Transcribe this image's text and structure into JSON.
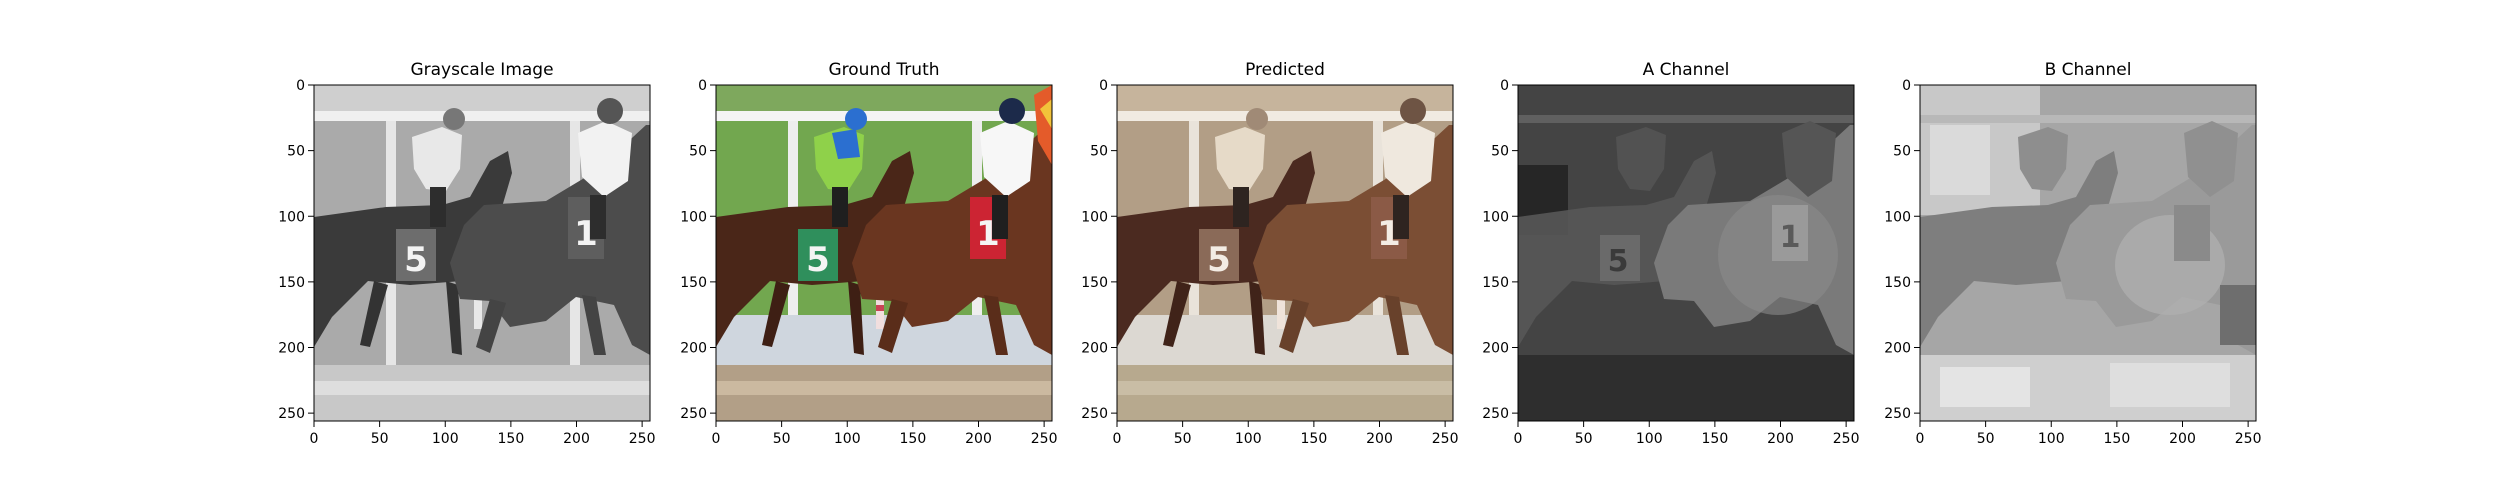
{
  "figure": {
    "panels": [
      {
        "id": "grayscale",
        "title": "Grayscale Image",
        "image": "grayscale photo of two jockeys racing horses numbered 5 and 1 past a white rail",
        "x_ticks": [
          "0",
          "50",
          "100",
          "150",
          "200",
          "250"
        ],
        "y_ticks": [
          "0",
          "50",
          "100",
          "150",
          "200",
          "250"
        ]
      },
      {
        "id": "ground-truth",
        "title": "Ground Truth",
        "image": "color photo of two jockeys racing horses, green saddle cloth 5 and red saddle cloth 1, green turf background",
        "x_ticks": [
          "0",
          "50",
          "100",
          "150",
          "200",
          "250"
        ],
        "y_ticks": [
          "0",
          "50",
          "100",
          "150",
          "200",
          "250"
        ]
      },
      {
        "id": "predicted",
        "title": "Predicted",
        "image": "sepia-toned colorized photo of the same horse race",
        "x_ticks": [
          "0",
          "50",
          "100",
          "150",
          "200",
          "250"
        ],
        "y_ticks": [
          "0",
          "50",
          "100",
          "150",
          "200",
          "250"
        ]
      },
      {
        "id": "a-channel",
        "title": "A Channel",
        "image": "dark grey blurry chroma channel of the horse race",
        "x_ticks": [
          "0",
          "50",
          "100",
          "150",
          "200",
          "250"
        ],
        "y_ticks": [
          "0",
          "50",
          "100",
          "150",
          "200",
          "250"
        ]
      },
      {
        "id": "b-channel",
        "title": "B Channel",
        "image": "light grey blocky chroma channel of the horse race",
        "x_ticks": [
          "0",
          "50",
          "100",
          "150",
          "200",
          "250"
        ],
        "y_ticks": [
          "0",
          "50",
          "100",
          "150",
          "200",
          "250"
        ]
      }
    ],
    "colors": {
      "ground_truth_turf": "#6aa14a",
      "ground_truth_saddle_5": "#2e8b57",
      "ground_truth_saddle_1": "#cc2433",
      "ground_truth_jockey_blue": "#2b6fd0",
      "ground_truth_jockey_green": "#8fd14a",
      "predicted_tone": "#a7805e",
      "horse_brown": "#5a2f1d"
    }
  }
}
